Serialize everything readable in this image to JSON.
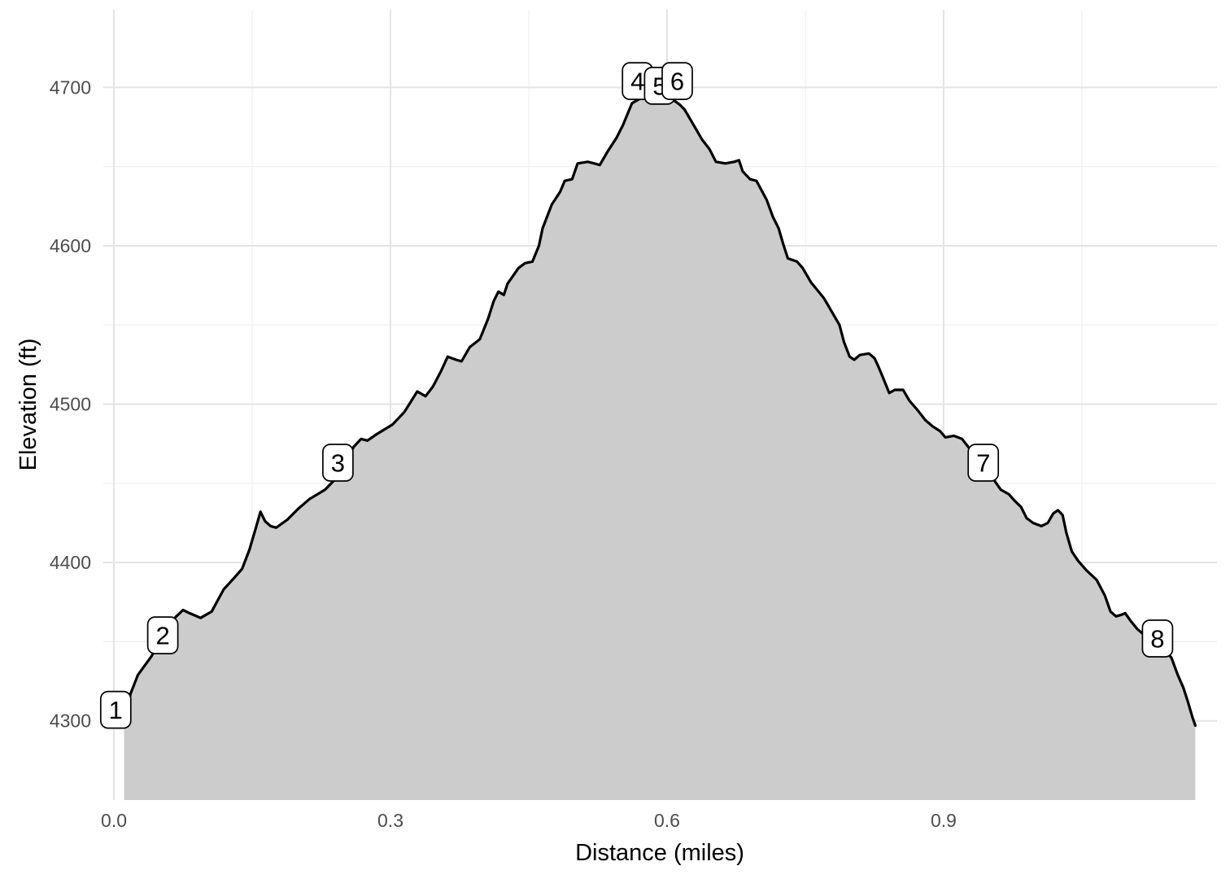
{
  "chart_data": {
    "type": "area",
    "title": "",
    "xlabel": "Distance (miles)",
    "ylabel": "Elevation (ft)",
    "xlim": [
      -0.0115,
      1.1965
    ],
    "ylim": [
      4250,
      4749
    ],
    "grid": true,
    "legend": false,
    "x_ticks": {
      "values": [
        0.0,
        0.3,
        0.6,
        0.9
      ],
      "labels": [
        "0.0",
        "0.3",
        "0.6",
        "0.9"
      ]
    },
    "x_minor": [
      0.15,
      0.45,
      0.75,
      1.05
    ],
    "y_ticks": {
      "values": [
        4300,
        4400,
        4500,
        4600,
        4700
      ],
      "labels": [
        "4300",
        "4400",
        "4500",
        "4600",
        "4700"
      ]
    },
    "y_minor": [
      4350,
      4450,
      4550,
      4650
    ],
    "colors": {
      "area_fill": "#CCCCCC",
      "line": "#000000",
      "grid_major": "#E4E4E4",
      "grid_minor": "#EFEFEF",
      "tick_text": "#4D4D4D",
      "axis_title": "#000000",
      "label_box_fill": "#FFFFFF",
      "label_box_border": "#000000",
      "background": "#FFFFFF"
    },
    "waypoints": [
      {
        "label": "1",
        "x": 0.002,
        "y": 4307
      },
      {
        "label": "2",
        "x": 0.053,
        "y": 4354
      },
      {
        "label": "3",
        "x": 0.243,
        "y": 4463
      },
      {
        "label": "4",
        "x": 0.568,
        "y": 4704
      },
      {
        "label": "5",
        "x": 0.592,
        "y": 4701
      },
      {
        "label": "6",
        "x": 0.611,
        "y": 4704
      },
      {
        "label": "7",
        "x": 0.943,
        "y": 4463
      },
      {
        "label": "8",
        "x": 1.132,
        "y": 4352
      }
    ],
    "series": [
      {
        "name": "elevation-profile",
        "points": [
          [
            0.011,
            4296
          ],
          [
            0.018,
            4317
          ],
          [
            0.026,
            4329
          ],
          [
            0.041,
            4341
          ],
          [
            0.053,
            4354
          ],
          [
            0.066,
            4365
          ],
          [
            0.075,
            4370
          ],
          [
            0.082,
            4368
          ],
          [
            0.094,
            4365
          ],
          [
            0.106,
            4369
          ],
          [
            0.119,
            4383
          ],
          [
            0.13,
            4390
          ],
          [
            0.139,
            4396
          ],
          [
            0.147,
            4408
          ],
          [
            0.154,
            4422
          ],
          [
            0.159,
            4432
          ],
          [
            0.164,
            4426
          ],
          [
            0.17,
            4423
          ],
          [
            0.176,
            4422
          ],
          [
            0.188,
            4427
          ],
          [
            0.2,
            4434
          ],
          [
            0.212,
            4440
          ],
          [
            0.229,
            4446
          ],
          [
            0.244,
            4455
          ],
          [
            0.26,
            4473
          ],
          [
            0.268,
            4478
          ],
          [
            0.275,
            4477
          ],
          [
            0.285,
            4481
          ],
          [
            0.302,
            4487
          ],
          [
            0.315,
            4495
          ],
          [
            0.329,
            4508
          ],
          [
            0.338,
            4505
          ],
          [
            0.346,
            4511
          ],
          [
            0.355,
            4521
          ],
          [
            0.362,
            4530
          ],
          [
            0.371,
            4528
          ],
          [
            0.377,
            4527
          ],
          [
            0.386,
            4536
          ],
          [
            0.397,
            4541
          ],
          [
            0.406,
            4554
          ],
          [
            0.412,
            4565
          ],
          [
            0.417,
            4571
          ],
          [
            0.423,
            4569
          ],
          [
            0.427,
            4576
          ],
          [
            0.439,
            4586
          ],
          [
            0.446,
            4589
          ],
          [
            0.454,
            4590
          ],
          [
            0.461,
            4600
          ],
          [
            0.465,
            4611
          ],
          [
            0.475,
            4626
          ],
          [
            0.484,
            4634
          ],
          [
            0.489,
            4641
          ],
          [
            0.497,
            4642
          ],
          [
            0.503,
            4652
          ],
          [
            0.514,
            4653
          ],
          [
            0.521,
            4652
          ],
          [
            0.527,
            4651
          ],
          [
            0.536,
            4660
          ],
          [
            0.545,
            4668
          ],
          [
            0.552,
            4676
          ],
          [
            0.562,
            4690
          ],
          [
            0.571,
            4693
          ],
          [
            0.582,
            4693
          ],
          [
            0.596,
            4693
          ],
          [
            0.607,
            4692
          ],
          [
            0.614,
            4689
          ],
          [
            0.619,
            4686
          ],
          [
            0.629,
            4676
          ],
          [
            0.638,
            4667
          ],
          [
            0.646,
            4661
          ],
          [
            0.653,
            4653
          ],
          [
            0.663,
            4652
          ],
          [
            0.673,
            4653
          ],
          [
            0.678,
            4654
          ],
          [
            0.682,
            4647
          ],
          [
            0.69,
            4642
          ],
          [
            0.697,
            4641
          ],
          [
            0.708,
            4629
          ],
          [
            0.715,
            4618
          ],
          [
            0.721,
            4611
          ],
          [
            0.726,
            4601
          ],
          [
            0.731,
            4592
          ],
          [
            0.741,
            4590
          ],
          [
            0.747,
            4586
          ],
          [
            0.756,
            4577
          ],
          [
            0.763,
            4572
          ],
          [
            0.77,
            4567
          ],
          [
            0.779,
            4558
          ],
          [
            0.787,
            4550
          ],
          [
            0.792,
            4539
          ],
          [
            0.798,
            4530
          ],
          [
            0.803,
            4528
          ],
          [
            0.809,
            4531
          ],
          [
            0.819,
            4532
          ],
          [
            0.825,
            4529
          ],
          [
            0.829,
            4524
          ],
          [
            0.834,
            4517
          ],
          [
            0.841,
            4507
          ],
          [
            0.847,
            4509
          ],
          [
            0.856,
            4509
          ],
          [
            0.863,
            4502
          ],
          [
            0.872,
            4496
          ],
          [
            0.88,
            4490
          ],
          [
            0.888,
            4486
          ],
          [
            0.896,
            4483
          ],
          [
            0.902,
            4479
          ],
          [
            0.911,
            4480
          ],
          [
            0.92,
            4478
          ],
          [
            0.928,
            4472
          ],
          [
            0.937,
            4466
          ],
          [
            0.947,
            4459
          ],
          [
            0.956,
            4451
          ],
          [
            0.962,
            4446
          ],
          [
            0.971,
            4443
          ],
          [
            0.977,
            4439
          ],
          [
            0.984,
            4435
          ],
          [
            0.99,
            4428
          ],
          [
            0.997,
            4425
          ],
          [
            1.006,
            4423
          ],
          [
            1.013,
            4425
          ],
          [
            1.019,
            4431
          ],
          [
            1.024,
            4433
          ],
          [
            1.029,
            4430
          ],
          [
            1.033,
            4419
          ],
          [
            1.039,
            4407
          ],
          [
            1.046,
            4401
          ],
          [
            1.055,
            4395
          ],
          [
            1.066,
            4389
          ],
          [
            1.075,
            4379
          ],
          [
            1.081,
            4369
          ],
          [
            1.087,
            4366
          ],
          [
            1.093,
            4367
          ],
          [
            1.097,
            4368
          ],
          [
            1.103,
            4363
          ],
          [
            1.11,
            4358
          ],
          [
            1.118,
            4354
          ],
          [
            1.129,
            4348
          ],
          [
            1.14,
            4344
          ],
          [
            1.147,
            4340
          ],
          [
            1.154,
            4329
          ],
          [
            1.16,
            4321
          ],
          [
            1.165,
            4312
          ],
          [
            1.17,
            4302
          ],
          [
            1.173,
            4297
          ]
        ]
      }
    ]
  }
}
